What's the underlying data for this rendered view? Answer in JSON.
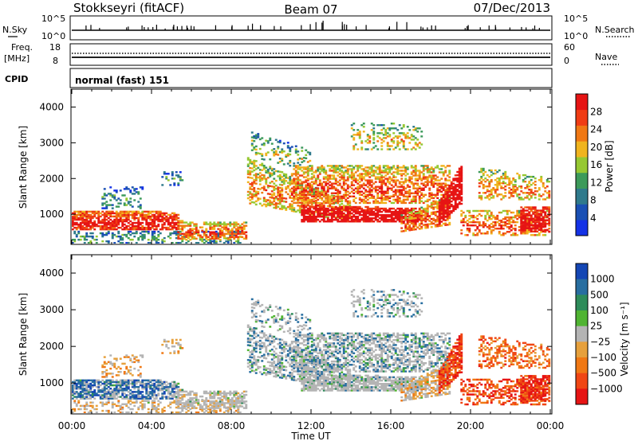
{
  "header": {
    "station": "Stokkseyri (fitACF)",
    "beam": "Beam 07",
    "date": "07/Dec/2013"
  },
  "noise_panel": {
    "left_label": "N.Sky",
    "left_ticks": [
      "10^5",
      "10^0"
    ],
    "right_ticks": [
      "10^5",
      "10^0"
    ],
    "right_label": "N.Search"
  },
  "freq_panel": {
    "left_label_1": "Freq.",
    "left_label_2": "[MHz]",
    "left_ticks": [
      "18",
      "8"
    ],
    "right_ticks": [
      "60",
      "0"
    ],
    "right_label": "Nave"
  },
  "cpid_panel": {
    "label": "CPID",
    "text": "normal (fast) 151"
  },
  "colors": {
    "power_scale": [
      "#1432e6",
      "#1a50b4",
      "#2f7a8c",
      "#3c9a5a",
      "#96c832",
      "#f0b41e",
      "#f07814",
      "#f03c14",
      "#e61414"
    ],
    "velocity_scale": [
      "#1446b4",
      "#286ea0",
      "#2e8c5a",
      "#50b432",
      "#b4b4b4",
      "#e6a03c",
      "#f07814",
      "#f04614",
      "#e61414"
    ]
  },
  "chart_data": [
    {
      "type": "heatmap",
      "name": "power",
      "xlabel": "",
      "ylabel": "Slant Range [km]",
      "xlim_hours": [
        0,
        24
      ],
      "ylim": [
        180,
        4500
      ],
      "y_ticks": [
        1000,
        2000,
        3000,
        4000
      ],
      "y_tick_labels": [
        "1000",
        "2000",
        "3000",
        "4000"
      ],
      "colorbar": {
        "label": "Power [dB]",
        "range": [
          0,
          32
        ],
        "tick_values": [
          4,
          8,
          12,
          16,
          20,
          24,
          28
        ],
        "tick_labels": [
          "4",
          "8",
          "12",
          "16",
          "20",
          "24",
          "28"
        ]
      }
    },
    {
      "type": "heatmap",
      "name": "velocity",
      "xlabel": "Time UT",
      "ylabel": "Slant Range [km]",
      "xlim_hours": [
        0,
        24
      ],
      "ylim": [
        180,
        4500
      ],
      "x_tick_labels": [
        "00:00",
        "04:00",
        "08:00",
        "12:00",
        "16:00",
        "20:00",
        "00:00"
      ],
      "y_ticks": [
        1000,
        2000,
        3000,
        4000
      ],
      "y_tick_labels": [
        "1000",
        "2000",
        "3000",
        "4000"
      ],
      "colorbar": {
        "label": "Velocity [m s⁻¹]",
        "tick_labels": [
          "1000",
          "500",
          "100",
          "25",
          "−25",
          "−100",
          "−500",
          "−1000"
        ]
      }
    }
  ]
}
